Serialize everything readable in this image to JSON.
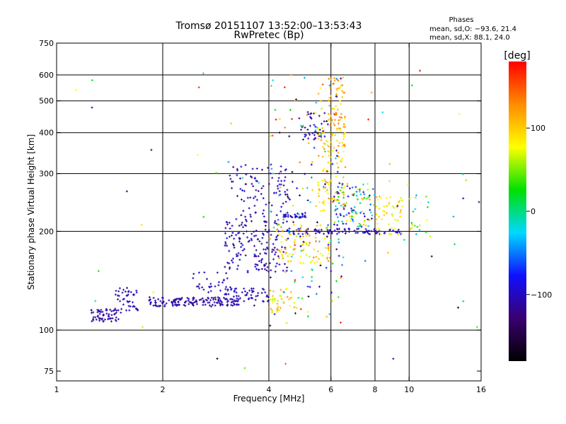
{
  "header": {
    "title_line1": "Tromsø 20151107 13:52:00–13:53:43",
    "title_line2": "RwPretec (Bp)"
  },
  "stats": {
    "heading": "Phases",
    "line_o": "mean, sd,O: −93.6, 21.4",
    "line_x": "mean, sd,X:  88.1, 24.0"
  },
  "colorbar": {
    "label": "[deg]",
    "ticks": [
      {
        "value": 100,
        "label": "100"
      },
      {
        "value": 0,
        "label": "0"
      },
      {
        "value": -100,
        "label": "−100"
      }
    ],
    "range": [
      -180,
      180
    ],
    "colors": [
      "#000000",
      "#3a0070",
      "#1010ff",
      "#00d8ff",
      "#00e000",
      "#ffff00",
      "#ff8c00",
      "#ff0000"
    ]
  },
  "chart_data": {
    "type": "scatter",
    "xlabel": "Frequency [MHz]",
    "ylabel": "Stationary phase Virtual Height [km]",
    "xscale": "log",
    "yscale": "log",
    "xlim": [
      1,
      16
    ],
    "ylim": [
      70,
      750
    ],
    "xticks": [
      {
        "value": 1,
        "label": "1"
      },
      {
        "value": 2,
        "label": "2"
      },
      {
        "value": 4,
        "label": "4"
      },
      {
        "value": 6,
        "label": "6"
      },
      {
        "value": 8,
        "label": "8"
      },
      {
        "value": 10,
        "label": "10"
      },
      {
        "value": 16,
        "label": "16"
      }
    ],
    "yticks": [
      {
        "value": 75,
        "label": "75"
      },
      {
        "value": 100,
        "label": "100"
      },
      {
        "value": 200,
        "label": "200"
      },
      {
        "value": 300,
        "label": "300"
      },
      {
        "value": 400,
        "label": "400"
      },
      {
        "value": 500,
        "label": "500"
      },
      {
        "value": 600,
        "label": "600"
      },
      {
        "value": 750,
        "label": "750"
      }
    ],
    "grid": true,
    "gridlines_x": [
      2,
      4,
      6,
      8,
      10
    ],
    "gridlines_y": [
      100,
      200,
      300,
      400,
      500,
      600
    ],
    "color_by": "phase (deg)",
    "clusters": [
      {
        "f": [
          1.25,
          1.5
        ],
        "h": [
          106,
          116
        ],
        "phase": [
          -120,
          -100
        ],
        "n": 60
      },
      {
        "f": [
          1.45,
          1.7
        ],
        "h": [
          112,
          135
        ],
        "phase": [
          -115,
          -95
        ],
        "n": 45
      },
      {
        "f": [
          1.8,
          3.3
        ],
        "h": [
          118,
          126
        ],
        "phase": [
          -120,
          -95
        ],
        "n": 150
      },
      {
        "f": [
          2.4,
          3.2
        ],
        "h": [
          130,
          150
        ],
        "phase": [
          -120,
          -90
        ],
        "n": 30
      },
      {
        "f": [
          3.0,
          4.0
        ],
        "h": [
          122,
          134
        ],
        "phase": [
          -115,
          -90
        ],
        "n": 60
      },
      {
        "f": [
          4.0,
          4.8
        ],
        "h": [
          112,
          135
        ],
        "phase": [
          60,
          130
        ],
        "n": 40
      },
      {
        "f": [
          3.0,
          4.6
        ],
        "h": [
          150,
          215
        ],
        "phase": [
          -130,
          -90
        ],
        "n": 160
      },
      {
        "f": [
          3.1,
          4.6
        ],
        "h": [
          215,
          320
        ],
        "phase": [
          -125,
          -80
        ],
        "n": 90
      },
      {
        "f": [
          4.4,
          5.1
        ],
        "h": [
          220,
          228
        ],
        "phase": [
          -115,
          -90
        ],
        "n": 30
      },
      {
        "f": [
          4.5,
          9.5
        ],
        "h": [
          196,
          204
        ],
        "phase": [
          -120,
          -90
        ],
        "n": 90
      },
      {
        "f": [
          4.2,
          6.0
        ],
        "h": [
          160,
          210
        ],
        "phase": [
          60,
          140
        ],
        "n": 80
      },
      {
        "f": [
          5.5,
          6.6
        ],
        "h": [
          230,
          420
        ],
        "phase": [
          70,
          130
        ],
        "n": 120
      },
      {
        "f": [
          5.9,
          6.6
        ],
        "h": [
          420,
          590
        ],
        "phase": [
          80,
          140
        ],
        "n": 60
      },
      {
        "f": [
          5.0,
          5.8
        ],
        "h": [
          380,
          460
        ],
        "phase": [
          -120,
          -95
        ],
        "n": 35
      },
      {
        "f": [
          6.1,
          8.0
        ],
        "h": [
          205,
          280
        ],
        "phase": [
          -120,
          120
        ],
        "n": 110
      },
      {
        "f": [
          8.0,
          9.6
        ],
        "h": [
          195,
          260
        ],
        "phase": [
          60,
          120
        ],
        "n": 50
      },
      {
        "f": [
          10.0,
          11.5
        ],
        "h": [
          190,
          270
        ],
        "phase": [
          -40,
          120
        ],
        "n": 20
      },
      {
        "f": [
          4.0,
          6.5
        ],
        "h": [
          100,
          600
        ],
        "phase": [
          -180,
          180
        ],
        "n": 160
      },
      {
        "f": [
          1.1,
          16
        ],
        "h": [
          75,
          620
        ],
        "phase": [
          -180,
          180
        ],
        "n": 60
      }
    ]
  }
}
